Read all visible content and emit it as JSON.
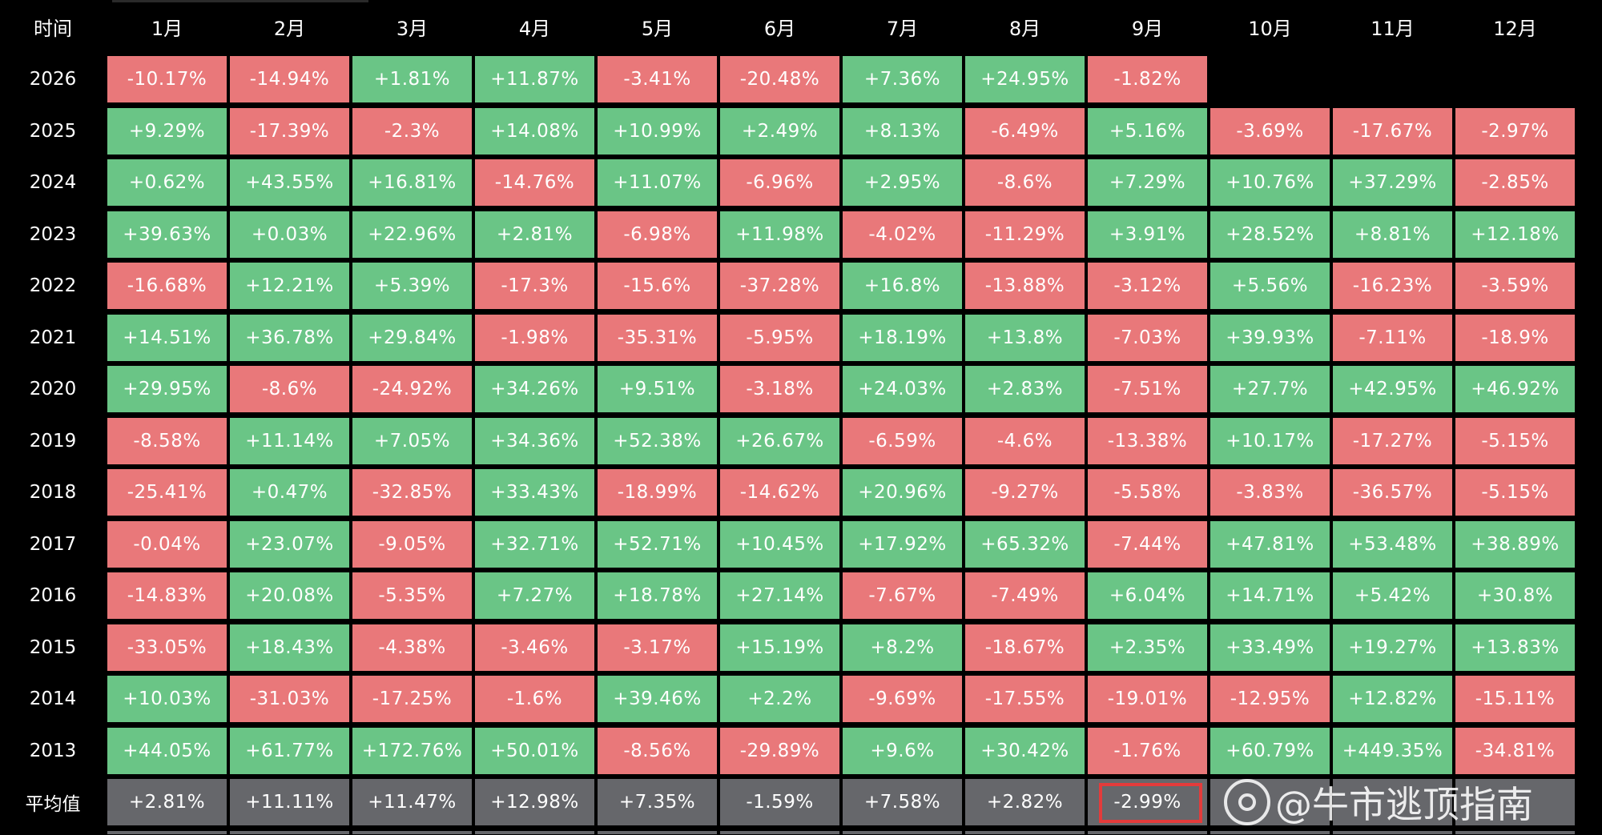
{
  "chart_data": {
    "type": "table",
    "corner_label": "时间",
    "columns": [
      "1月",
      "2月",
      "3月",
      "4月",
      "5月",
      "6月",
      "7月",
      "8月",
      "9月",
      "10月",
      "11月",
      "12月"
    ],
    "rows": [
      {
        "year": "2026",
        "values": [
          "-10.17%",
          "-14.94%",
          "+1.81%",
          "+11.87%",
          "-3.41%",
          "-20.48%",
          "+7.36%",
          "+24.95%",
          "-1.82%",
          null,
          null,
          null
        ]
      },
      {
        "year": "2025",
        "values": [
          "+9.29%",
          "-17.39%",
          "-2.3%",
          "+14.08%",
          "+10.99%",
          "+2.49%",
          "+8.13%",
          "-6.49%",
          "+5.16%",
          "-3.69%",
          "-17.67%",
          "-2.97%"
        ]
      },
      {
        "year": "2024",
        "values": [
          "+0.62%",
          "+43.55%",
          "+16.81%",
          "-14.76%",
          "+11.07%",
          "-6.96%",
          "+2.95%",
          "-8.6%",
          "+7.29%",
          "+10.76%",
          "+37.29%",
          "-2.85%"
        ]
      },
      {
        "year": "2023",
        "values": [
          "+39.63%",
          "+0.03%",
          "+22.96%",
          "+2.81%",
          "-6.98%",
          "+11.98%",
          "-4.02%",
          "-11.29%",
          "+3.91%",
          "+28.52%",
          "+8.81%",
          "+12.18%"
        ]
      },
      {
        "year": "2022",
        "values": [
          "-16.68%",
          "+12.21%",
          "+5.39%",
          "-17.3%",
          "-15.6%",
          "-37.28%",
          "+16.8%",
          "-13.88%",
          "-3.12%",
          "+5.56%",
          "-16.23%",
          "-3.59%"
        ]
      },
      {
        "year": "2021",
        "values": [
          "+14.51%",
          "+36.78%",
          "+29.84%",
          "-1.98%",
          "-35.31%",
          "-5.95%",
          "+18.19%",
          "+13.8%",
          "-7.03%",
          "+39.93%",
          "-7.11%",
          "-18.9%"
        ]
      },
      {
        "year": "2020",
        "values": [
          "+29.95%",
          "-8.6%",
          "-24.92%",
          "+34.26%",
          "+9.51%",
          "-3.18%",
          "+24.03%",
          "+2.83%",
          "-7.51%",
          "+27.7%",
          "+42.95%",
          "+46.92%"
        ]
      },
      {
        "year": "2019",
        "values": [
          "-8.58%",
          "+11.14%",
          "+7.05%",
          "+34.36%",
          "+52.38%",
          "+26.67%",
          "-6.59%",
          "-4.6%",
          "-13.38%",
          "+10.17%",
          "-17.27%",
          "-5.15%"
        ]
      },
      {
        "year": "2018",
        "values": [
          "-25.41%",
          "+0.47%",
          "-32.85%",
          "+33.43%",
          "-18.99%",
          "-14.62%",
          "+20.96%",
          "-9.27%",
          "-5.58%",
          "-3.83%",
          "-36.57%",
          "-5.15%"
        ]
      },
      {
        "year": "2017",
        "values": [
          "-0.04%",
          "+23.07%",
          "-9.05%",
          "+32.71%",
          "+52.71%",
          "+10.45%",
          "+17.92%",
          "+65.32%",
          "-7.44%",
          "+47.81%",
          "+53.48%",
          "+38.89%"
        ]
      },
      {
        "year": "2016",
        "values": [
          "-14.83%",
          "+20.08%",
          "-5.35%",
          "+7.27%",
          "+18.78%",
          "+27.14%",
          "-7.67%",
          "-7.49%",
          "+6.04%",
          "+14.71%",
          "+5.42%",
          "+30.8%"
        ]
      },
      {
        "year": "2015",
        "values": [
          "-33.05%",
          "+18.43%",
          "-4.38%",
          "-3.46%",
          "-3.17%",
          "+15.19%",
          "+8.2%",
          "-18.67%",
          "+2.35%",
          "+33.49%",
          "+19.27%",
          "+13.83%"
        ]
      },
      {
        "year": "2014",
        "values": [
          "+10.03%",
          "-31.03%",
          "-17.25%",
          "-1.6%",
          "+39.46%",
          "+2.2%",
          "-9.69%",
          "-17.55%",
          "-19.01%",
          "-12.95%",
          "+12.82%",
          "-15.11%"
        ]
      },
      {
        "year": "2013",
        "values": [
          "+44.05%",
          "+61.77%",
          "+172.76%",
          "+50.01%",
          "-8.56%",
          "-29.89%",
          "+9.6%",
          "+30.42%",
          "-1.76%",
          "+60.79%",
          "+449.35%",
          "-34.81%"
        ]
      }
    ],
    "average": {
      "label": "平均值",
      "values": [
        "+2.81%",
        "+11.11%",
        "+11.47%",
        "+12.98%",
        "+7.35%",
        "-1.59%",
        "+7.58%",
        "+2.82%",
        "-2.99%",
        "",
        "",
        ""
      ]
    },
    "highlighted_cell": {
      "row": "平均值",
      "column": "9月"
    }
  },
  "colors": {
    "background": "#000000",
    "positive": "#6ac586",
    "negative": "#e9787a",
    "average": "#66676b",
    "highlight": "#e33b3b"
  },
  "watermark": {
    "text": "@牛市逃顶指南",
    "icon": "weibo-logo-icon"
  }
}
